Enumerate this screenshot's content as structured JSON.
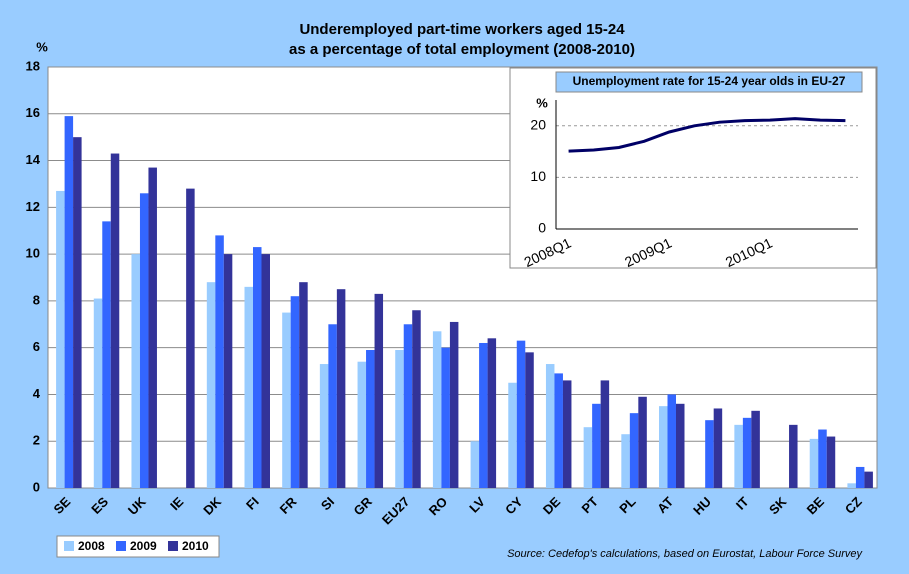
{
  "chart_data": [
    {
      "type": "bar",
      "title": [
        "Underemployed part-time workers aged 15-24",
        "as a percentage of total employment (2008-2010)"
      ],
      "ylabel": "%",
      "categories": [
        "SE",
        "ES",
        "UK",
        "IE",
        "DK",
        "FI",
        "FR",
        "SI",
        "GR",
        "EU27",
        "RO",
        "LV",
        "CY",
        "DE",
        "PT",
        "PL",
        "AT",
        "HU",
        "IT",
        "SK",
        "BE",
        "CZ"
      ],
      "series": [
        {
          "name": "2008",
          "color": "#99ccff",
          "values": [
            12.7,
            8.1,
            10.0,
            null,
            8.8,
            8.6,
            7.5,
            5.3,
            5.4,
            5.9,
            6.7,
            2.0,
            4.5,
            5.3,
            2.6,
            2.3,
            3.5,
            null,
            2.7,
            null,
            2.1,
            0.2
          ]
        },
        {
          "name": "2009",
          "color": "#3366ff",
          "values": [
            15.9,
            11.4,
            12.6,
            null,
            10.8,
            10.3,
            8.2,
            7.0,
            5.9,
            7.0,
            6.0,
            6.2,
            6.3,
            4.9,
            3.6,
            3.2,
            4.0,
            2.9,
            3.0,
            null,
            2.5,
            0.9
          ]
        },
        {
          "name": "2010",
          "color": "#333399",
          "values": [
            15.0,
            14.3,
            13.7,
            12.8,
            10.0,
            10.0,
            8.8,
            8.5,
            8.3,
            7.6,
            7.1,
            6.4,
            5.8,
            4.6,
            4.6,
            3.9,
            3.6,
            3.4,
            3.3,
            2.7,
            2.2,
            0.7
          ]
        }
      ],
      "ylim": [
        0,
        18
      ],
      "yticks": [
        0,
        2,
        4,
        6,
        8,
        10,
        12,
        14,
        16,
        18
      ],
      "grid": true,
      "legend": "bottom-left",
      "source": "Source: Cedefop's calculations, based on Eurostat, Labour Force Survey"
    },
    {
      "type": "line",
      "title": "Unemployment rate for 15-24 year olds in EU-27",
      "ylabel": "%",
      "categories": [
        "2008Q1",
        null,
        null,
        null,
        "2009Q1",
        null,
        null,
        null,
        "2010Q1",
        null,
        null,
        null
      ],
      "series": [
        {
          "name": "Unemployment rate",
          "color": "#000066",
          "values": [
            15.1,
            15.3,
            15.8,
            17.0,
            18.8,
            20.0,
            20.7,
            21.0,
            21.1,
            21.4,
            21.1,
            21.0
          ]
        }
      ],
      "ylim": [
        0,
        25
      ],
      "yticks": [
        0,
        10,
        20
      ],
      "grid": true
    }
  ]
}
